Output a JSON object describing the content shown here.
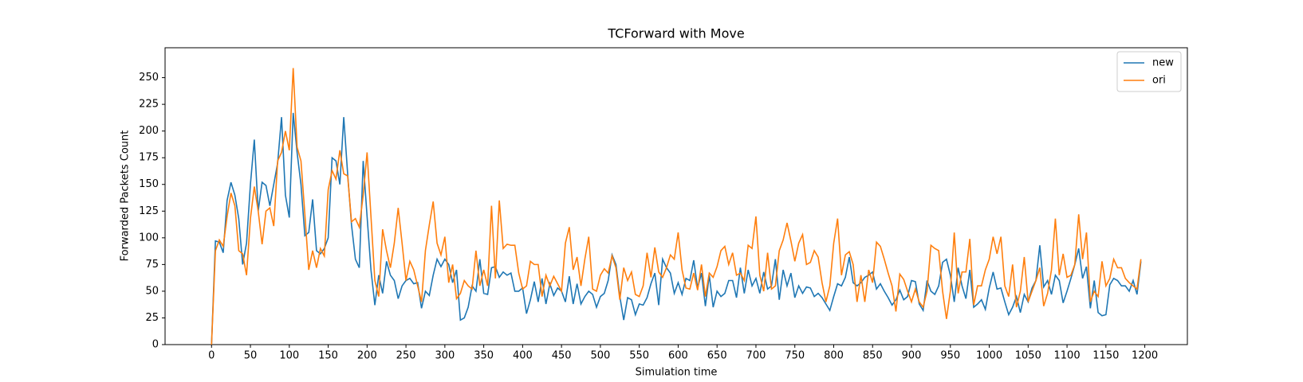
{
  "chart_data": {
    "type": "line",
    "title": "TCForward with Move",
    "x_label": "Simulation time",
    "y_label": "Forwarded Packets Count",
    "x": [
      0,
      5,
      10,
      15,
      20,
      25,
      30,
      35,
      40,
      45,
      50,
      55,
      60,
      65,
      70,
      75,
      80,
      85,
      90,
      95,
      100,
      105,
      110,
      115,
      120,
      125,
      130,
      135,
      140,
      145,
      150,
      155,
      160,
      165,
      170,
      175,
      180,
      185,
      190,
      195,
      200,
      205,
      210,
      215,
      220,
      225,
      230,
      235,
      240,
      245,
      250,
      255,
      260,
      265,
      270,
      275,
      280,
      285,
      290,
      295,
      300,
      305,
      310,
      315,
      320,
      325,
      330,
      335,
      340,
      345,
      350,
      355,
      360,
      365,
      370,
      375,
      380,
      385,
      390,
      395,
      400,
      405,
      410,
      415,
      420,
      425,
      430,
      435,
      440,
      445,
      450,
      455,
      460,
      465,
      470,
      475,
      480,
      485,
      490,
      495,
      500,
      505,
      510,
      515,
      520,
      525,
      530,
      535,
      540,
      545,
      550,
      555,
      560,
      565,
      570,
      575,
      580,
      585,
      590,
      595,
      600,
      605,
      610,
      615,
      620,
      625,
      630,
      635,
      640,
      645,
      650,
      655,
      660,
      665,
      670,
      675,
      680,
      685,
      690,
      695,
      700,
      705,
      710,
      715,
      720,
      725,
      730,
      735,
      740,
      745,
      750,
      755,
      760,
      765,
      770,
      775,
      780,
      785,
      790,
      795,
      800,
      805,
      810,
      815,
      820,
      825,
      830,
      835,
      840,
      845,
      850,
      855,
      860,
      865,
      870,
      875,
      880,
      885,
      890,
      895,
      900,
      905,
      910,
      915,
      920,
      925,
      930,
      935,
      940,
      945,
      950,
      955,
      960,
      965,
      970,
      975,
      980,
      985,
      990,
      995,
      1000,
      1005,
      1010,
      1015,
      1020,
      1025,
      1030,
      1035,
      1040,
      1045,
      1050,
      1055,
      1060,
      1065,
      1070,
      1075,
      1080,
      1085,
      1090,
      1095,
      1100,
      1105,
      1110,
      1115,
      1120,
      1125,
      1130,
      1135,
      1140,
      1145,
      1150,
      1155,
      1160,
      1165,
      1170,
      1175,
      1180,
      1185,
      1190,
      1195
    ],
    "series": [
      {
        "name": "new",
        "color": "#1f77b4",
        "values": [
          0,
          97,
          96,
          86,
          135,
          152,
          140,
          118,
          75,
          95,
          150,
          192,
          125,
          152,
          149,
          130,
          150,
          170,
          213,
          140,
          119,
          217,
          180,
          150,
          102,
          105,
          136,
          88,
          85,
          90,
          100,
          175,
          172,
          150,
          213,
          160,
          112,
          80,
          72,
          172,
          120,
          70,
          37,
          65,
          48,
          78,
          65,
          60,
          43,
          55,
          60,
          62,
          57,
          58,
          34,
          50,
          46,
          65,
          80,
          73,
          80,
          75,
          58,
          70,
          23,
          25,
          35,
          55,
          50,
          80,
          48,
          47,
          72,
          73,
          63,
          68,
          65,
          67,
          50,
          50,
          53,
          29,
          42,
          59,
          40,
          62,
          38,
          57,
          46,
          53,
          50,
          40,
          64,
          38,
          57,
          38,
          45,
          50,
          47,
          35,
          45,
          48,
          60,
          84,
          75,
          45,
          23,
          44,
          42,
          28,
          38,
          37,
          44,
          57,
          67,
          37,
          80,
          72,
          67,
          48,
          58,
          47,
          62,
          60,
          79,
          53,
          67,
          36,
          65,
          35,
          50,
          45,
          48,
          60,
          60,
          44,
          72,
          48,
          70,
          55,
          62,
          48,
          68,
          52,
          55,
          80,
          42,
          70,
          55,
          67,
          44,
          55,
          48,
          54,
          53,
          45,
          48,
          44,
          38,
          32,
          45,
          57,
          55,
          63,
          82,
          58,
          55,
          58,
          63,
          65,
          68,
          52,
          57,
          50,
          44,
          37,
          42,
          51,
          42,
          45,
          60,
          59,
          38,
          32,
          60,
          50,
          47,
          55,
          77,
          80,
          65,
          40,
          72,
          55,
          43,
          70,
          35,
          38,
          42,
          33,
          53,
          68,
          52,
          53,
          40,
          28,
          35,
          45,
          30,
          47,
          40,
          53,
          60,
          93,
          54,
          60,
          47,
          65,
          60,
          39,
          50,
          62,
          75,
          90,
          62,
          73,
          34,
          60,
          30,
          27,
          28,
          56,
          62,
          60,
          55,
          55,
          50,
          60,
          47,
          78
        ]
      },
      {
        "name": "ori",
        "color": "#ff7f0e",
        "values": [
          0,
          88,
          98,
          92,
          120,
          142,
          130,
          88,
          85,
          65,
          118,
          148,
          125,
          94,
          125,
          128,
          111,
          172,
          180,
          200,
          182,
          259,
          185,
          172,
          122,
          70,
          88,
          72,
          90,
          83,
          145,
          163,
          155,
          182,
          160,
          158,
          115,
          118,
          110,
          140,
          180,
          120,
          60,
          45,
          108,
          88,
          72,
          95,
          128,
          95,
          60,
          78,
          70,
          55,
          40,
          88,
          112,
          134,
          95,
          84,
          101,
          58,
          75,
          43,
          48,
          60,
          55,
          52,
          88,
          55,
          70,
          55,
          130,
          62,
          135,
          90,
          94,
          93,
          93,
          67,
          52,
          55,
          78,
          75,
          75,
          45,
          65,
          55,
          64,
          57,
          50,
          95,
          110,
          70,
          82,
          55,
          80,
          101,
          52,
          50,
          65,
          71,
          67,
          83,
          72,
          42,
          72,
          60,
          68,
          47,
          45,
          55,
          86,
          63,
          91,
          68,
          63,
          72,
          84,
          80,
          105,
          70,
          53,
          52,
          67,
          51,
          75,
          45,
          67,
          63,
          73,
          88,
          92,
          75,
          86,
          65,
          67,
          60,
          93,
          90,
          120,
          65,
          50,
          86,
          52,
          55,
          88,
          98,
          114,
          97,
          78,
          95,
          103,
          75,
          77,
          88,
          82,
          58,
          40,
          55,
          95,
          118,
          65,
          84,
          87,
          75,
          40,
          65,
          40,
          70,
          58,
          96,
          92,
          80,
          67,
          55,
          31,
          66,
          61,
          50,
          40,
          52,
          40,
          35,
          50,
          93,
          90,
          88,
          50,
          24,
          50,
          105,
          48,
          68,
          68,
          99,
          37,
          55,
          55,
          70,
          80,
          101,
          85,
          101,
          55,
          45,
          75,
          35,
          50,
          82,
          40,
          50,
          60,
          72,
          36,
          48,
          70,
          118,
          65,
          85,
          63,
          65,
          75,
          122,
          80,
          105,
          40,
          50,
          45,
          78,
          55,
          62,
          80,
          72,
          72,
          62,
          58,
          55,
          52,
          80
        ]
      }
    ],
    "xlim": [
      -59.75,
      1254.75
    ],
    "ylim": [
      0,
      278
    ],
    "xticks": [
      0,
      50,
      100,
      150,
      200,
      250,
      300,
      350,
      400,
      450,
      500,
      550,
      600,
      650,
      700,
      750,
      800,
      850,
      900,
      950,
      1000,
      1050,
      1100,
      1150,
      1200
    ],
    "yticks": [
      0,
      25,
      50,
      75,
      100,
      125,
      150,
      175,
      200,
      225,
      250
    ],
    "legend": "upper right"
  }
}
